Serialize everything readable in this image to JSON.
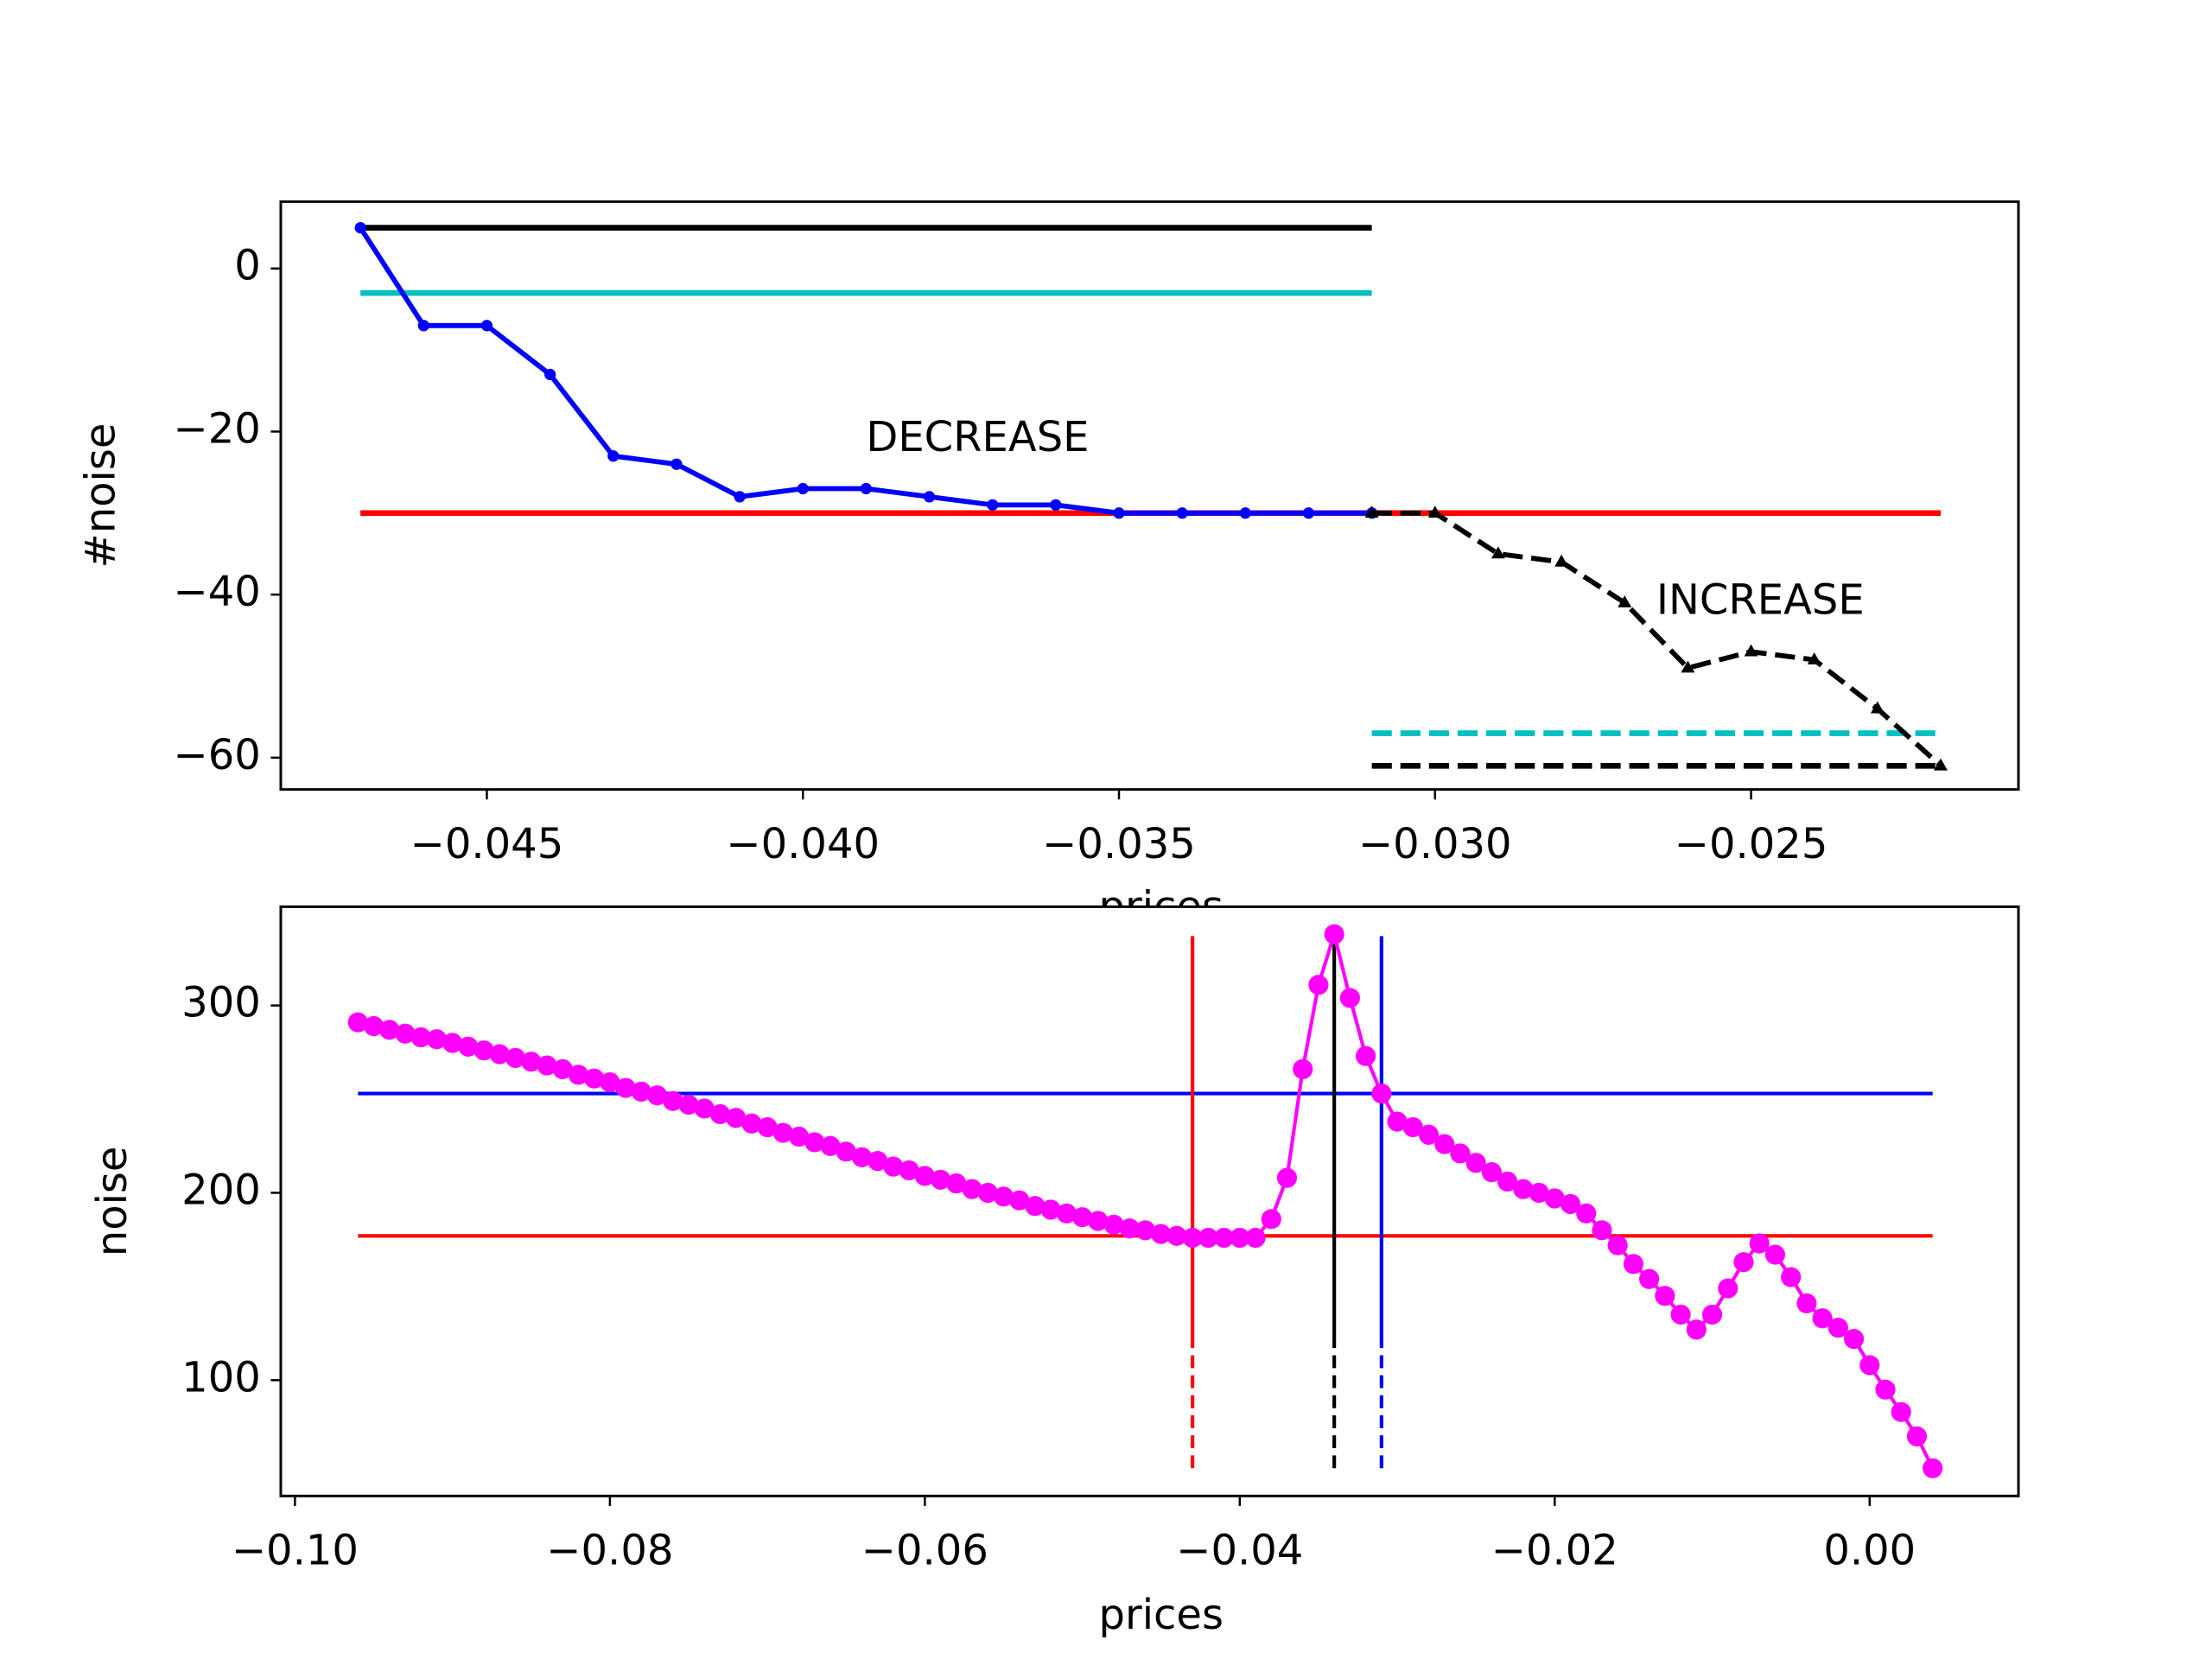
{
  "chart_data": [
    {
      "type": "line",
      "xlabel": "prices",
      "ylabel": "#noise",
      "xlim": [
        -0.04826,
        -0.02077
      ],
      "ylim": [
        -63.9,
        8.2
      ],
      "xticks": [
        {
          "value": -0.045,
          "label": "−0.045"
        },
        {
          "value": -0.04,
          "label": "−0.040"
        },
        {
          "value": -0.035,
          "label": "−0.035"
        },
        {
          "value": -0.03,
          "label": "−0.030"
        },
        {
          "value": -0.025,
          "label": "−0.025"
        }
      ],
      "yticks": [
        {
          "value": -60,
          "label": "−60"
        },
        {
          "value": -40,
          "label": "−40"
        },
        {
          "value": -20,
          "label": "−20"
        },
        0
      ],
      "series": [
        {
          "color": "#000000",
          "linestyle": "solid",
          "x": [
            -0.047,
            -0.031
          ],
          "values": [
            5,
            5
          ]
        },
        {
          "color": "#00bfbf",
          "linestyle": "solid",
          "x": [
            -0.047,
            -0.031
          ],
          "values": [
            -3,
            -3
          ]
        },
        {
          "color": "#ff0000",
          "linestyle": "solid",
          "x": [
            -0.047,
            -0.022
          ],
          "values": [
            -30,
            -30
          ]
        },
        {
          "color": "#00bfbf",
          "linestyle": "dashed",
          "x": [
            -0.031,
            -0.022
          ],
          "values": [
            -57,
            -57
          ]
        },
        {
          "color": "#000000",
          "linestyle": "dashed",
          "x": [
            -0.031,
            -0.022
          ],
          "values": [
            -61,
            -61
          ]
        },
        {
          "color": "#0000ff",
          "linestyle": "solid",
          "marker": "circle",
          "x": [
            -0.047,
            -0.046,
            -0.045,
            -0.044,
            -0.043,
            -0.042,
            -0.041,
            -0.04,
            -0.039,
            -0.038,
            -0.037,
            -0.036,
            -0.035,
            -0.034,
            -0.033,
            -0.032,
            -0.031
          ],
          "values": [
            5,
            -7,
            -7,
            -13,
            -23,
            -24,
            -28,
            -27,
            -27,
            -28,
            -29,
            -29,
            -30,
            -30,
            -30,
            -30,
            -30
          ]
        },
        {
          "color": "#000000",
          "linestyle": "dashed",
          "marker": "triangle",
          "x": [
            -0.031,
            -0.03,
            -0.029,
            -0.028,
            -0.027,
            -0.026,
            -0.025,
            -0.024,
            -0.023,
            -0.022
          ],
          "values": [
            -30,
            -30,
            -35,
            -36,
            -41,
            -49,
            -47,
            -48,
            -54,
            -61
          ]
        }
      ],
      "annotations": [
        {
          "text": "DECREASE",
          "x": -0.039,
          "y": -21
        },
        {
          "text": "INCREASE",
          "x": -0.0265,
          "y": -41
        }
      ]
    },
    {
      "type": "line",
      "xlabel": "prices",
      "ylabel": "noise",
      "xlim": [
        -0.1009,
        0.00945
      ],
      "ylim": [
        38.2,
        352.7
      ],
      "xticks": [
        {
          "value": -0.1,
          "label": "−0.10"
        },
        {
          "value": -0.08,
          "label": "−0.08"
        },
        {
          "value": -0.06,
          "label": "−0.06"
        },
        {
          "value": -0.04,
          "label": "−0.04"
        },
        {
          "value": -0.02,
          "label": "−0.02"
        },
        {
          "value": 0,
          "label": "0.00"
        }
      ],
      "yticks": [
        100,
        200,
        300
      ],
      "series": [
        {
          "color": "#0000ff",
          "linestyle": "solid",
          "x": [
            -0.096,
            0.004
          ],
          "values": [
            253,
            253
          ]
        },
        {
          "color": "#ff0000",
          "linestyle": "solid",
          "x": [
            -0.096,
            0.004
          ],
          "values": [
            177,
            177
          ]
        },
        {
          "color": "#ff0000",
          "linestyle": "solid",
          "x": [
            -0.043,
            -0.043
          ],
          "values": [
            123,
            337
          ]
        },
        {
          "color": "#ff0000",
          "linestyle": "dashed",
          "x": [
            -0.043,
            -0.043
          ],
          "values": [
            53,
            123
          ]
        },
        {
          "color": "#000000",
          "linestyle": "solid",
          "x": [
            -0.034,
            -0.034
          ],
          "values": [
            123,
            338
          ]
        },
        {
          "color": "#000000",
          "linestyle": "dashed",
          "x": [
            -0.034,
            -0.034
          ],
          "values": [
            53,
            123
          ]
        },
        {
          "color": "#0000ff",
          "linestyle": "solid",
          "x": [
            -0.031,
            -0.031
          ],
          "values": [
            123,
            337
          ]
        },
        {
          "color": "#0000ff",
          "linestyle": "dashed",
          "x": [
            -0.031,
            -0.031
          ],
          "values": [
            53,
            123
          ]
        },
        {
          "color": "#ff00ff",
          "linestyle": "solid",
          "marker": "circle",
          "x": [
            -0.096,
            -0.095,
            -0.094,
            -0.093,
            -0.092,
            -0.091,
            -0.09,
            -0.089,
            -0.088,
            -0.087,
            -0.086,
            -0.085,
            -0.084,
            -0.083,
            -0.082,
            -0.081,
            -0.08,
            -0.079,
            -0.078,
            -0.077,
            -0.076,
            -0.075,
            -0.074,
            -0.073,
            -0.072,
            -0.071,
            -0.07,
            -0.069,
            -0.068,
            -0.067,
            -0.066,
            -0.065,
            -0.064,
            -0.063,
            -0.062,
            -0.061,
            -0.06,
            -0.059,
            -0.058,
            -0.057,
            -0.056,
            -0.055,
            -0.054,
            -0.053,
            -0.052,
            -0.051,
            -0.05,
            -0.049,
            -0.048,
            -0.047,
            -0.046,
            -0.045,
            -0.044,
            -0.043,
            -0.042,
            -0.041,
            -0.04,
            -0.039,
            -0.038,
            -0.037,
            -0.036,
            -0.035,
            -0.034,
            -0.033,
            -0.032,
            -0.031,
            -0.03,
            -0.029,
            -0.028,
            -0.027,
            -0.026,
            -0.025,
            -0.024,
            -0.023,
            -0.022,
            -0.021,
            -0.02,
            -0.019,
            -0.018,
            -0.017,
            -0.016,
            -0.015,
            -0.014,
            -0.013,
            -0.012,
            -0.011,
            -0.01,
            -0.009,
            -0.008,
            -0.007,
            -0.006,
            -0.005,
            -0.004,
            -0.003,
            -0.002,
            -0.001,
            0,
            0.001,
            0.002,
            0.003,
            0.004
          ],
          "values": [
            291,
            289,
            287,
            285,
            283,
            282,
            280,
            278,
            276,
            274,
            272,
            270,
            268,
            266,
            263,
            261,
            259,
            256,
            254,
            252,
            249,
            247,
            245,
            242,
            240,
            237,
            235,
            232,
            230,
            227,
            225,
            222,
            219,
            217,
            214,
            212,
            209,
            207,
            205,
            202,
            200,
            198,
            196,
            193,
            191,
            189,
            187,
            185,
            183,
            181,
            180,
            178,
            177,
            176,
            176,
            176,
            176,
            176,
            186,
            208,
            266,
            311,
            338,
            304,
            273,
            253,
            238,
            235,
            231,
            226,
            221,
            216,
            211,
            206,
            202,
            200,
            197,
            194,
            189,
            180,
            172,
            162,
            154,
            145,
            135,
            127,
            135,
            149,
            163,
            173,
            167,
            155,
            141,
            133,
            128,
            122,
            108,
            95,
            83,
            70,
            53
          ]
        }
      ]
    }
  ]
}
